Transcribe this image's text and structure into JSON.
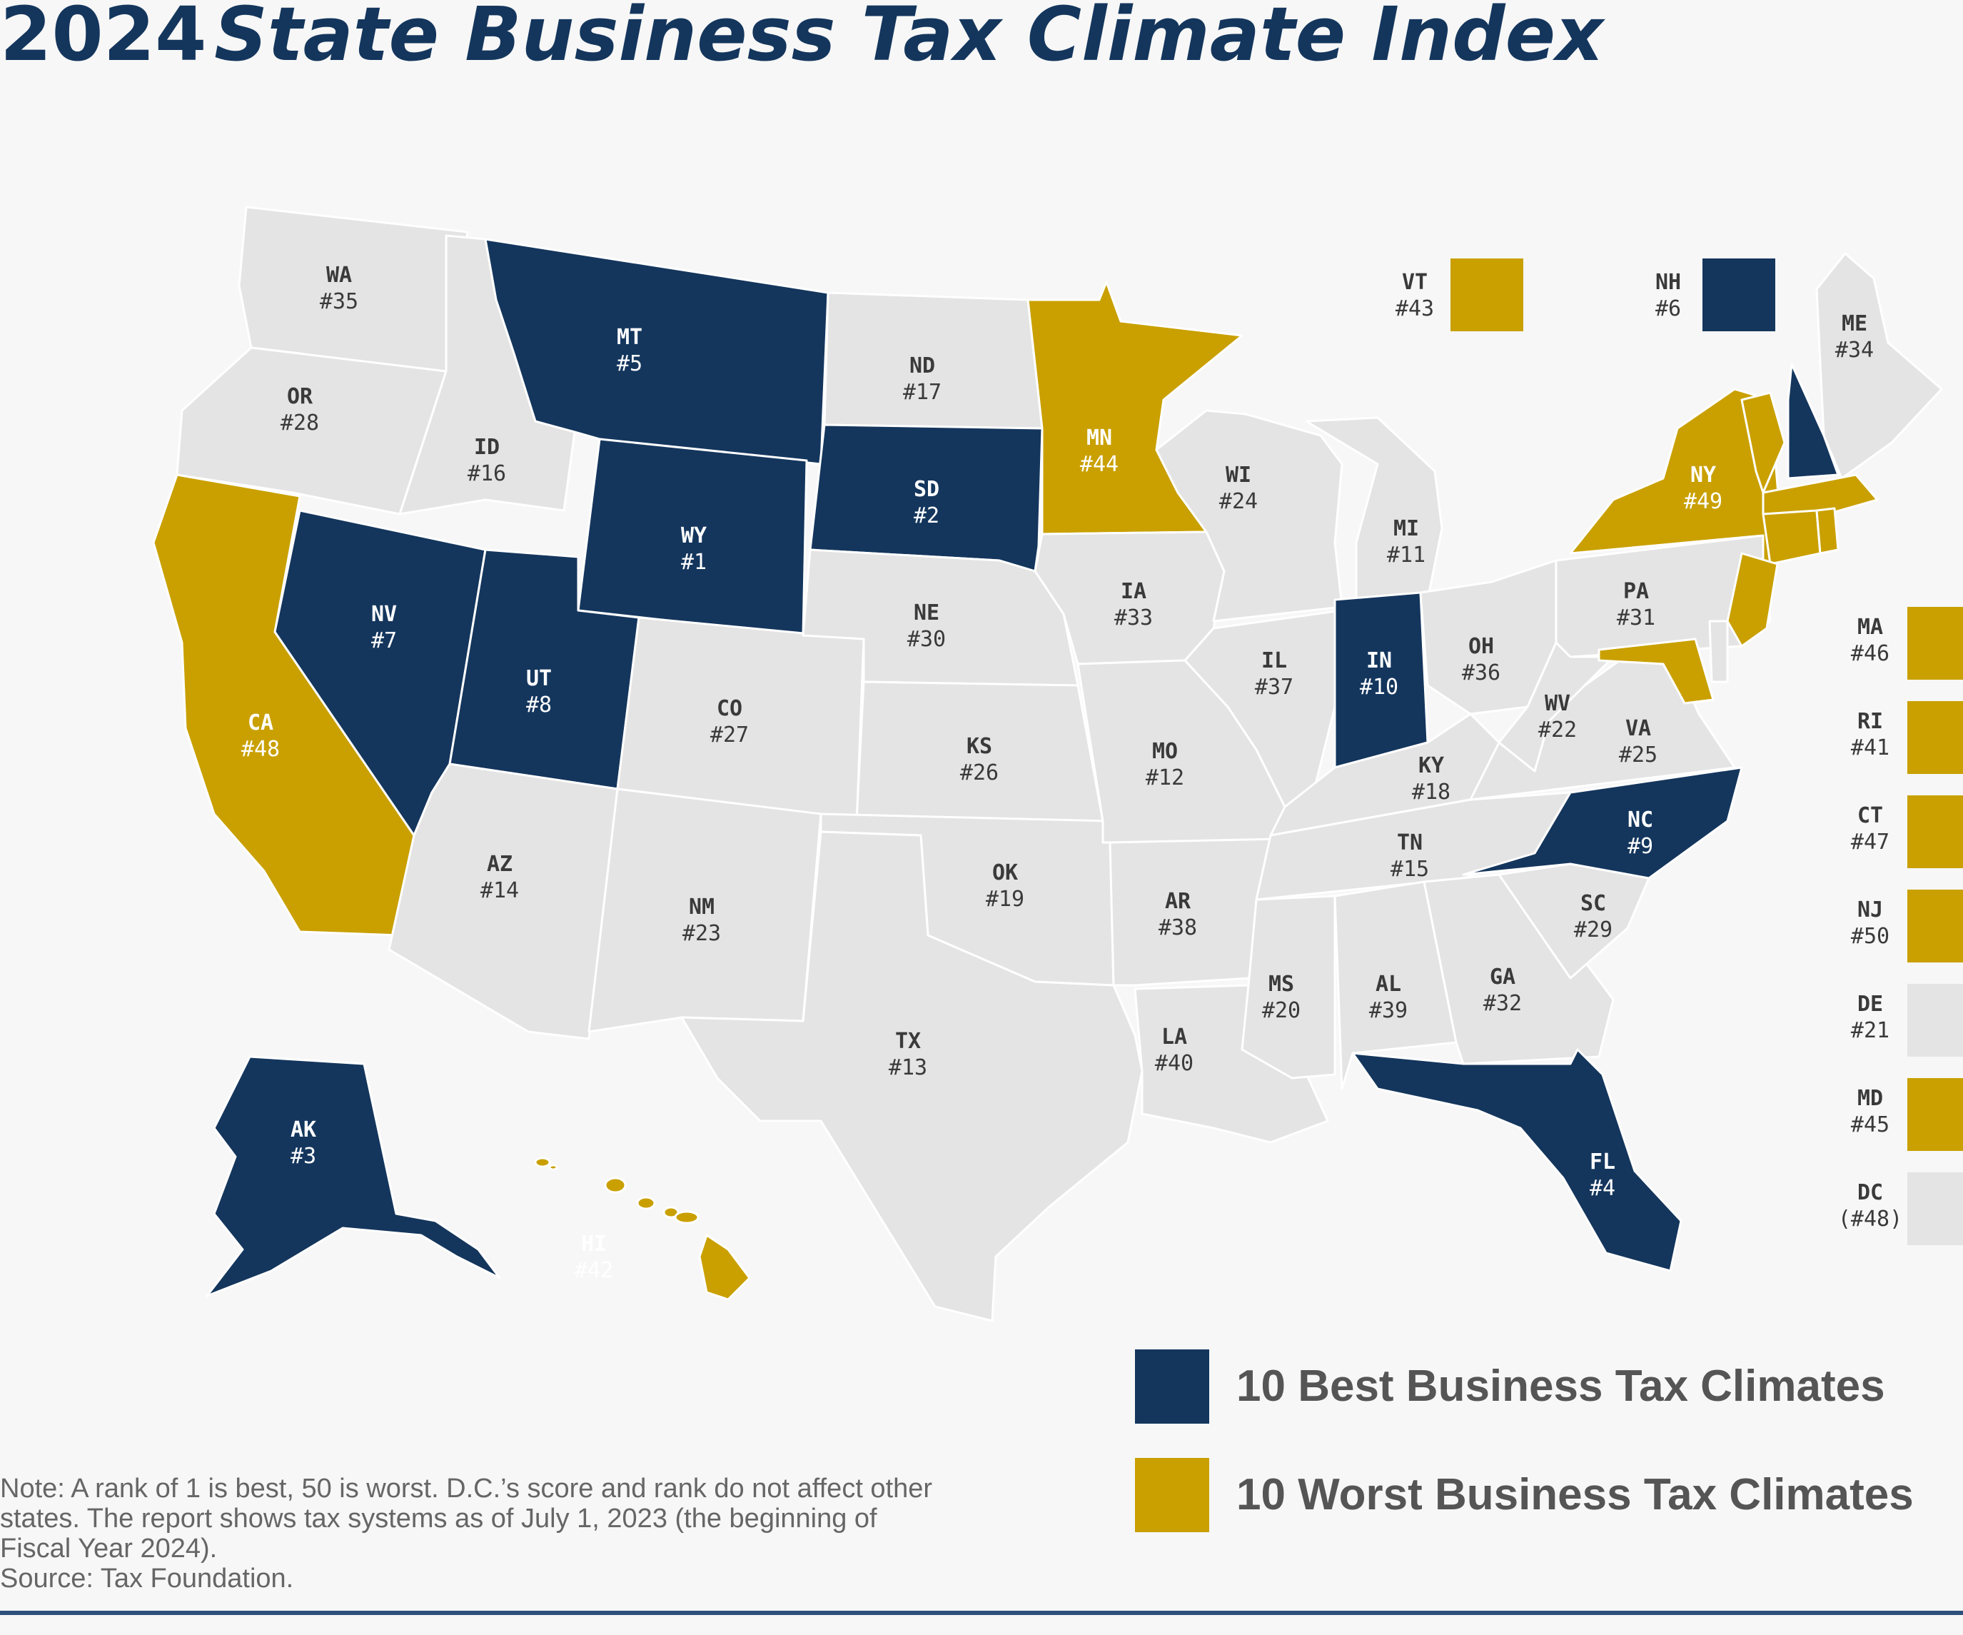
{
  "header": {
    "title_part1": "2024",
    "title_part2": "State Business Tax Climate Index"
  },
  "colors": {
    "best": "#14365d",
    "worst": "#c9a000",
    "other": "#e4e4e4",
    "border": "#ffffff",
    "label_dark": "#3a3a3a",
    "label_light": "#ffffff"
  },
  "states": [
    {
      "abbr": "WA",
      "rank": "#35",
      "tier": "other"
    },
    {
      "abbr": "OR",
      "rank": "#28",
      "tier": "other"
    },
    {
      "abbr": "CA",
      "rank": "#48",
      "tier": "worst"
    },
    {
      "abbr": "ID",
      "rank": "#16",
      "tier": "other"
    },
    {
      "abbr": "NV",
      "rank": "#7",
      "tier": "best"
    },
    {
      "abbr": "MT",
      "rank": "#5",
      "tier": "best"
    },
    {
      "abbr": "WY",
      "rank": "#1",
      "tier": "best"
    },
    {
      "abbr": "UT",
      "rank": "#8",
      "tier": "best"
    },
    {
      "abbr": "AZ",
      "rank": "#14",
      "tier": "other"
    },
    {
      "abbr": "CO",
      "rank": "#27",
      "tier": "other"
    },
    {
      "abbr": "NM",
      "rank": "#23",
      "tier": "other"
    },
    {
      "abbr": "ND",
      "rank": "#17",
      "tier": "other"
    },
    {
      "abbr": "SD",
      "rank": "#2",
      "tier": "best"
    },
    {
      "abbr": "NE",
      "rank": "#30",
      "tier": "other"
    },
    {
      "abbr": "KS",
      "rank": "#26",
      "tier": "other"
    },
    {
      "abbr": "OK",
      "rank": "#19",
      "tier": "other"
    },
    {
      "abbr": "TX",
      "rank": "#13",
      "tier": "other"
    },
    {
      "abbr": "MN",
      "rank": "#44",
      "tier": "worst"
    },
    {
      "abbr": "IA",
      "rank": "#33",
      "tier": "other"
    },
    {
      "abbr": "MO",
      "rank": "#12",
      "tier": "other"
    },
    {
      "abbr": "AR",
      "rank": "#38",
      "tier": "other"
    },
    {
      "abbr": "LA",
      "rank": "#40",
      "tier": "other"
    },
    {
      "abbr": "WI",
      "rank": "#24",
      "tier": "other"
    },
    {
      "abbr": "IL",
      "rank": "#37",
      "tier": "other"
    },
    {
      "abbr": "MI",
      "rank": "#11",
      "tier": "other"
    },
    {
      "abbr": "IN",
      "rank": "#10",
      "tier": "best"
    },
    {
      "abbr": "OH",
      "rank": "#36",
      "tier": "other"
    },
    {
      "abbr": "KY",
      "rank": "#18",
      "tier": "other"
    },
    {
      "abbr": "TN",
      "rank": "#15",
      "tier": "other"
    },
    {
      "abbr": "MS",
      "rank": "#20",
      "tier": "other"
    },
    {
      "abbr": "AL",
      "rank": "#39",
      "tier": "other"
    },
    {
      "abbr": "GA",
      "rank": "#32",
      "tier": "other"
    },
    {
      "abbr": "FL",
      "rank": "#4",
      "tier": "best"
    },
    {
      "abbr": "SC",
      "rank": "#29",
      "tier": "other"
    },
    {
      "abbr": "NC",
      "rank": "#9",
      "tier": "best"
    },
    {
      "abbr": "VA",
      "rank": "#25",
      "tier": "other"
    },
    {
      "abbr": "WV",
      "rank": "#22",
      "tier": "other"
    },
    {
      "abbr": "PA",
      "rank": "#31",
      "tier": "other"
    },
    {
      "abbr": "NY",
      "rank": "#49",
      "tier": "worst"
    },
    {
      "abbr": "ME",
      "rank": "#34",
      "tier": "other"
    },
    {
      "abbr": "AK",
      "rank": "#3",
      "tier": "best"
    },
    {
      "abbr": "HI",
      "rank": "#42",
      "tier": "worst"
    }
  ],
  "small_states": [
    {
      "abbr": "VT",
      "rank": "#43",
      "tier": "worst"
    },
    {
      "abbr": "NH",
      "rank": "#6",
      "tier": "best"
    },
    {
      "abbr": "MA",
      "rank": "#46",
      "tier": "worst"
    },
    {
      "abbr": "RI",
      "rank": "#41",
      "tier": "worst"
    },
    {
      "abbr": "CT",
      "rank": "#47",
      "tier": "worst"
    },
    {
      "abbr": "NJ",
      "rank": "#50",
      "tier": "worst"
    },
    {
      "abbr": "DE",
      "rank": "#21",
      "tier": "other"
    },
    {
      "abbr": "MD",
      "rank": "#45",
      "tier": "worst"
    },
    {
      "abbr": "DC",
      "rank": "(#48)",
      "tier": "other"
    }
  ],
  "legend": [
    {
      "label": "10 Best Business Tax Climates",
      "tier": "best"
    },
    {
      "label": "10 Worst Business Tax Climates",
      "tier": "worst"
    }
  ],
  "note_lines": [
    "Note: A rank of 1 is best, 50 is worst. D.C.’s score and rank do not affect other",
    "states. The report shows tax systems as of July 1, 2023 (the beginning of",
    "Fiscal Year 2024).",
    "Source: Tax Foundation."
  ]
}
